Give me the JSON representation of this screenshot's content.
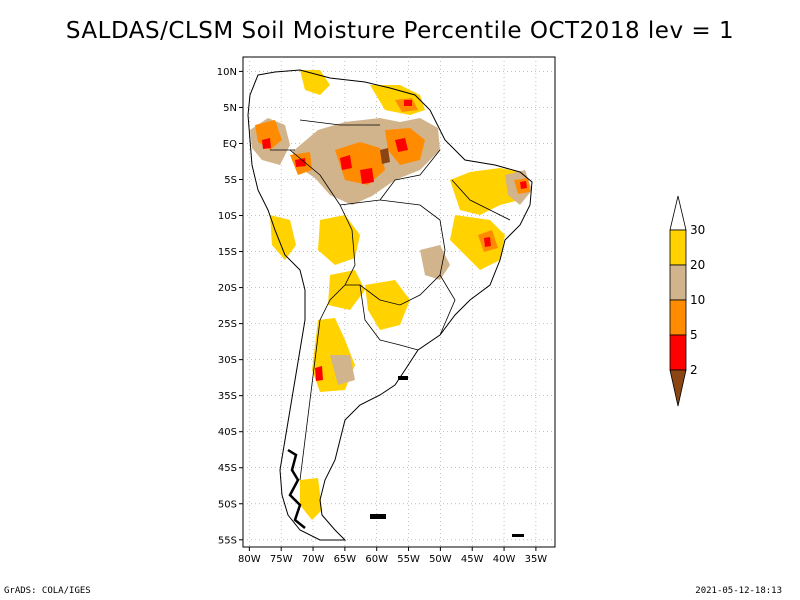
{
  "title": "SALDAS/CLSM Soil Moisture Percentile OCT2018 lev = 1",
  "map": {
    "lat_ticks": [
      {
        "label": "10N",
        "lat": 10
      },
      {
        "label": "5N",
        "lat": 5
      },
      {
        "label": "EQ",
        "lat": 0
      },
      {
        "label": "5S",
        "lat": -5
      },
      {
        "label": "10S",
        "lat": -10
      },
      {
        "label": "15S",
        "lat": -15
      },
      {
        "label": "20S",
        "lat": -20
      },
      {
        "label": "25S",
        "lat": -25
      },
      {
        "label": "30S",
        "lat": -30
      },
      {
        "label": "35S",
        "lat": -35
      },
      {
        "label": "40S",
        "lat": -40
      },
      {
        "label": "45S",
        "lat": -45
      },
      {
        "label": "50S",
        "lat": -50
      },
      {
        "label": "55S",
        "lat": -55
      }
    ],
    "lon_ticks": [
      {
        "label": "80W",
        "lon": -80
      },
      {
        "label": "75W",
        "lon": -75
      },
      {
        "label": "70W",
        "lon": -70
      },
      {
        "label": "65W",
        "lon": -65
      },
      {
        "label": "60W",
        "lon": -60
      },
      {
        "label": "55W",
        "lon": -55
      },
      {
        "label": "50W",
        "lon": -50
      },
      {
        "label": "45W",
        "lon": -45
      },
      {
        "label": "40W",
        "lon": -40
      },
      {
        "label": "35W",
        "lon": -35
      }
    ],
    "lon_range": [
      -81,
      -32
    ],
    "lat_range": [
      -56,
      12
    ],
    "grid": "dotted"
  },
  "legend": {
    "labels": [
      "30",
      "20",
      "10",
      "5",
      "2"
    ],
    "colors": {
      "above30": "#ffffff",
      "c20_30": "#ffd200",
      "c10_20": "#d2b48c",
      "c5_10": "#ff8c00",
      "c2_5": "#ff0000",
      "below2": "#8b4513"
    }
  },
  "footer": {
    "left": "GrADS: COLA/IGES",
    "right": "2021-05-12-18:13"
  }
}
